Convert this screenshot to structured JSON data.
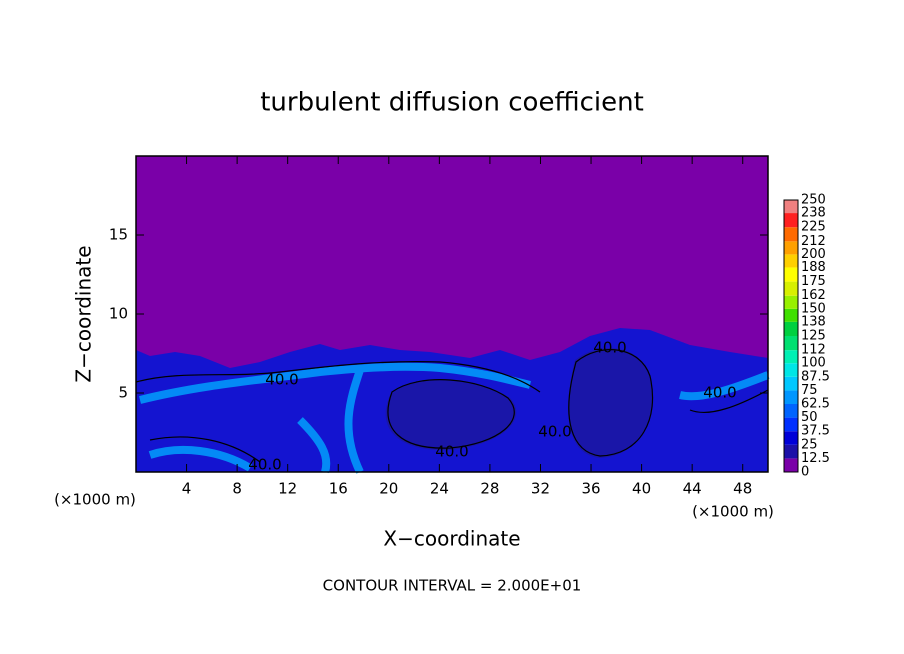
{
  "chart_data": {
    "type": "contour",
    "title": "turbulent diffusion coefficient",
    "x_label": "X−coordinate",
    "y_label": "Z−coordinate",
    "x_unit": "(×1000 m)",
    "footer": "CONTOUR INTERVAL = 2.000E+01",
    "xlim": [
      0,
      50
    ],
    "xticks": [
      4,
      8,
      12,
      16,
      20,
      24,
      28,
      32,
      36,
      40,
      44,
      48
    ],
    "ylim": [
      0,
      20
    ],
    "yticks": [
      5,
      10,
      15
    ],
    "contour_labels": [
      "40.0",
      "40.0",
      "40.0",
      "40.0",
      "40.0",
      "40.0"
    ],
    "colorbar": {
      "lim": [
        0,
        250
      ],
      "levels": [
        0,
        12.5,
        25,
        37.5,
        50,
        62.5,
        75,
        87.5,
        100,
        112,
        125,
        138,
        150,
        162,
        175,
        188,
        200,
        212,
        225,
        238,
        250
      ],
      "colors": [
        "#7a00a8",
        "#1c10a8",
        "#0000d8",
        "#0030ff",
        "#0064ff",
        "#0096ff",
        "#00c8ff",
        "#00e6e6",
        "#00f0b4",
        "#00e070",
        "#00d040",
        "#40e000",
        "#98f000",
        "#d8f000",
        "#ffff00",
        "#ffd000",
        "#ffa000",
        "#ff6a00",
        "#ff2020",
        "#f08080"
      ]
    }
  }
}
